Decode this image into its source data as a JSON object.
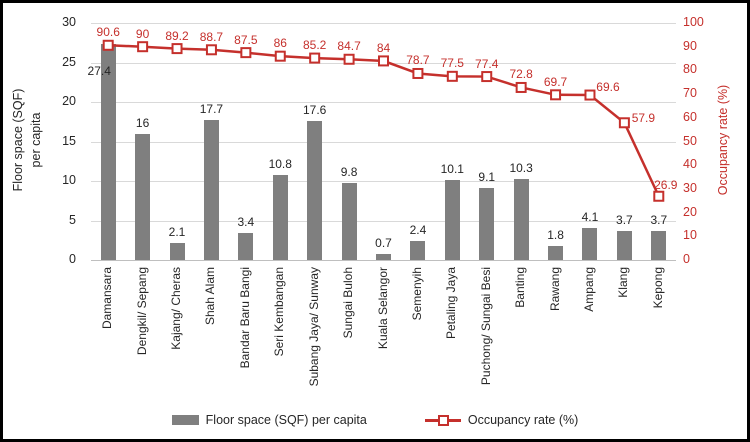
{
  "chart_data": {
    "type": "bar",
    "subtype": "combo-bar-line",
    "title": "",
    "categories": [
      "Damansara",
      "Dengkil/ Sepang",
      "Kajang/ Cheras",
      "Shah Alam",
      "Bandar Baru Bangi",
      "Seri Kembangan",
      "Subang Jaya/ Sunway",
      "Sungai Buloh",
      "Kuala Selangor",
      "Semenyih",
      "Petaling Jaya",
      "Puchong/ Sungai Besi",
      "Banting",
      "Rawang",
      "Ampang",
      "Klang",
      "Kepong"
    ],
    "series": [
      {
        "name": "Floor space (SQF) per capita",
        "type": "bar",
        "axis": "left",
        "color": "#7f7f7f",
        "values": [
          27.4,
          16,
          2.1,
          17.7,
          3.4,
          10.8,
          17.6,
          9.8,
          0.7,
          2.4,
          10.1,
          9.1,
          10.3,
          1.8,
          4.1,
          3.7,
          3.7
        ]
      },
      {
        "name": "Occupancy rate (%)",
        "type": "line",
        "axis": "right",
        "color": "#c5302c",
        "marker": "open-square",
        "values": [
          90.6,
          90,
          89.2,
          88.7,
          87.5,
          86,
          85.2,
          84.7,
          84,
          78.7,
          77.5,
          77.4,
          72.8,
          69.7,
          69.6,
          57.9,
          26.9
        ]
      }
    ],
    "left_axis": {
      "title_lines": [
        "Floor space (SQF)",
        "per capita"
      ],
      "min": 0,
      "max": 30,
      "step": 5,
      "ticks": [
        "30",
        "25",
        "20",
        "15",
        "10",
        "5",
        "0"
      ]
    },
    "right_axis": {
      "title": "Occupancy rate (%)",
      "min": 0,
      "max": 100,
      "step": 10,
      "ticks": [
        "100",
        "90",
        "80",
        "70",
        "60",
        "50",
        "40",
        "30",
        "20",
        "10",
        "0"
      ],
      "color": "#c5302c"
    },
    "legend": [
      {
        "label": "Floor space (SQF) per capita",
        "swatch": "bar"
      },
      {
        "label": "Occupancy rate (%)",
        "swatch": "line"
      }
    ],
    "grid": true,
    "legend_position": "bottom",
    "colors": {
      "bar": "#7f7f7f",
      "line": "#c5302c",
      "gridline": "#d9d9d9",
      "axis_line": "#bfbfbf",
      "text": "#262626"
    }
  }
}
